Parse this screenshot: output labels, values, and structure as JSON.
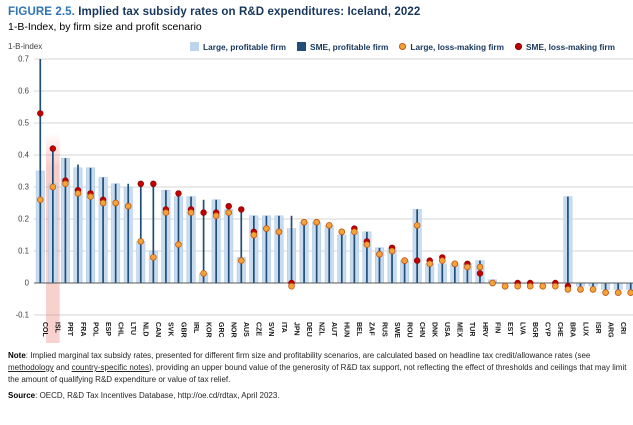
{
  "figure": {
    "label": "FIGURE 2.5.",
    "title": "Implied tax subsidy rates on R&D expenditures: Iceland, 2022",
    "subtitle": "1-B-Index, by firm size and profit scenario",
    "axis_unit": "1-B-index"
  },
  "legend": {
    "items": [
      {
        "label": "Large, profitable firm",
        "marker": "square",
        "color": "#BDD5EC"
      },
      {
        "label": "SME, profitable firm",
        "marker": "square",
        "color": "#1F4E79"
      },
      {
        "label": "Large, loss-making firm",
        "marker": "circle",
        "color": "#F2A33A",
        "ring": "#C55A11"
      },
      {
        "label": "SME, loss-making firm",
        "marker": "circle",
        "color": "#C00000",
        "ring": "#8B0000"
      }
    ]
  },
  "chart_data": {
    "type": "bar",
    "title": "Implied tax subsidy rates on R&D expenditures: Iceland, 2022",
    "ylabel": "1-B-index",
    "xlabel": "",
    "ylim": [
      -0.1,
      0.7
    ],
    "yticks": [
      "0.7",
      "0.6",
      "0.5",
      "0.4",
      "0.3",
      "0.2",
      "0.1",
      "0",
      "-0.1"
    ],
    "grid": true,
    "legend_position": "top",
    "highlight": {
      "category": "ISL",
      "color": "#E8685C"
    },
    "categories": [
      "COL",
      "ISL",
      "PRT",
      "FRA",
      "POL",
      "ESP",
      "CHL",
      "LTU",
      "NLD",
      "CAN",
      "SVK",
      "GBR",
      "IRL",
      "KOR",
      "GRC",
      "NOR",
      "AUS",
      "CZE",
      "SVN",
      "ITA",
      "JPN",
      "DEU",
      "NZL",
      "AUT",
      "HUN",
      "BEL",
      "ZAF",
      "RUS",
      "SWE",
      "ROU",
      "CHN",
      "DNK",
      "USA",
      "MEX",
      "TUR",
      "HRV",
      "FIN",
      "EST",
      "LVA",
      "BGR",
      "CYP",
      "CHE",
      "BRA",
      "LUX",
      "ISR",
      "ARG",
      "CRI",
      "MLT"
    ],
    "series": [
      {
        "name": "Large, profitable firm",
        "style": "wide-bar",
        "color": "#C9DCEF",
        "edge": "#A9C6E3",
        "values": [
          0.35,
          0.31,
          0.39,
          0.36,
          0.36,
          0.33,
          0.31,
          0.3,
          0.13,
          0.1,
          0.29,
          0.27,
          0.27,
          0.03,
          0.26,
          0.23,
          0.08,
          0.21,
          0.21,
          0.21,
          0.17,
          0.19,
          0.19,
          0.18,
          0.15,
          0.16,
          0.16,
          0.11,
          0.11,
          0.07,
          0.23,
          0.06,
          0.06,
          0.06,
          0.06,
          0.07,
          0.01,
          0.0,
          0.0,
          0.0,
          0.0,
          0.0,
          0.27,
          -0.01,
          -0.01,
          -0.02,
          -0.02,
          -0.02
        ]
      },
      {
        "name": "SME, profitable firm",
        "style": "narrow-bar",
        "color": "#1F4E79",
        "values": [
          0.7,
          0.43,
          0.39,
          0.37,
          0.36,
          0.33,
          0.31,
          0.31,
          0.31,
          0.31,
          0.29,
          0.28,
          0.27,
          0.26,
          0.26,
          0.23,
          0.23,
          0.21,
          0.21,
          0.21,
          0.21,
          0.19,
          0.19,
          0.18,
          0.15,
          0.16,
          0.16,
          0.11,
          0.11,
          0.07,
          0.23,
          0.06,
          0.06,
          0.06,
          0.06,
          0.07,
          0.01,
          0.0,
          0.0,
          0.0,
          0.0,
          0.0,
          0.27,
          -0.01,
          -0.01,
          -0.02,
          -0.02,
          -0.02
        ]
      },
      {
        "name": "Large, loss-making firm",
        "style": "dot",
        "color": "#F2A33A",
        "ring": "#C55A11",
        "values": [
          0.26,
          0.3,
          0.31,
          0.28,
          0.27,
          0.25,
          0.25,
          0.24,
          0.13,
          0.08,
          0.22,
          0.12,
          0.22,
          0.03,
          0.21,
          0.22,
          0.07,
          0.15,
          0.17,
          0.16,
          -0.01,
          0.19,
          0.19,
          0.18,
          0.16,
          0.16,
          0.12,
          0.09,
          0.1,
          0.07,
          0.18,
          0.06,
          0.07,
          0.06,
          0.05,
          0.05,
          0.0,
          -0.01,
          -0.01,
          -0.01,
          -0.01,
          -0.01,
          -0.02,
          -0.02,
          -0.02,
          -0.03,
          -0.03,
          -0.03
        ]
      },
      {
        "name": "SME, loss-making firm",
        "style": "dot",
        "color": "#C00000",
        "ring": "#8B0000",
        "values": [
          0.53,
          0.42,
          0.32,
          0.29,
          0.28,
          0.26,
          0.25,
          0.24,
          0.31,
          0.31,
          0.23,
          0.28,
          0.23,
          0.22,
          0.22,
          0.24,
          0.23,
          0.16,
          0.17,
          0.16,
          0.0,
          0.19,
          0.19,
          0.18,
          0.16,
          0.17,
          0.13,
          0.09,
          0.11,
          0.07,
          0.07,
          0.07,
          0.08,
          0.06,
          0.06,
          0.03,
          0.0,
          -0.01,
          0.0,
          0.0,
          -0.01,
          0.0,
          -0.01,
          -0.02,
          -0.02,
          -0.03,
          -0.03,
          -0.03
        ]
      }
    ]
  },
  "note": {
    "heading": "Note",
    "part1": ": Implied marginal tax subsidy rates, presented for different firm size and profitability scenarios, are calculated based on headline tax credit/allowance rates (see ",
    "link1": "methodology",
    "part2": " and ",
    "link2": "country-specific notes",
    "part3": "), providing an upper bound value of the generosity of R&D tax support, not reflecting the effect of thresholds and ceilings that may limit the amount of qualifying R&D expenditure or value of tax relief."
  },
  "source": {
    "heading": "Source",
    "text": ": OECD, R&D Tax Incentives Database, http://oe.cd/rdtax, April 2023."
  }
}
